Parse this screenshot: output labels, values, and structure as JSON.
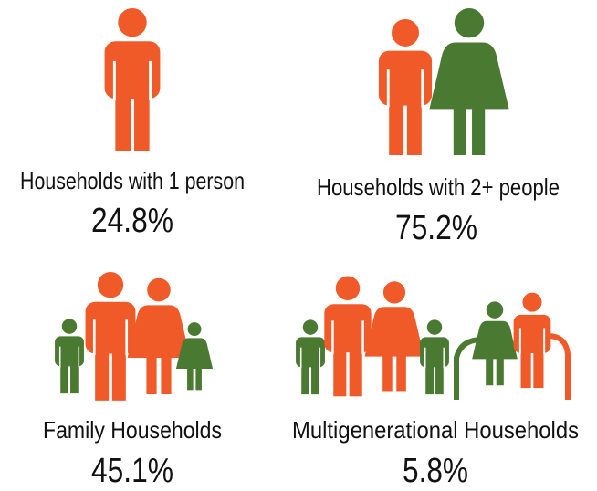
{
  "items": [
    {
      "label": "Households with 1 person",
      "value": "24.8%"
    },
    {
      "label": "Households with 2+ people",
      "value": "75.2%"
    },
    {
      "label": "Family Households",
      "value": "45.1%"
    },
    {
      "label": "Multigenerational Households",
      "value": "5.8%"
    }
  ]
}
